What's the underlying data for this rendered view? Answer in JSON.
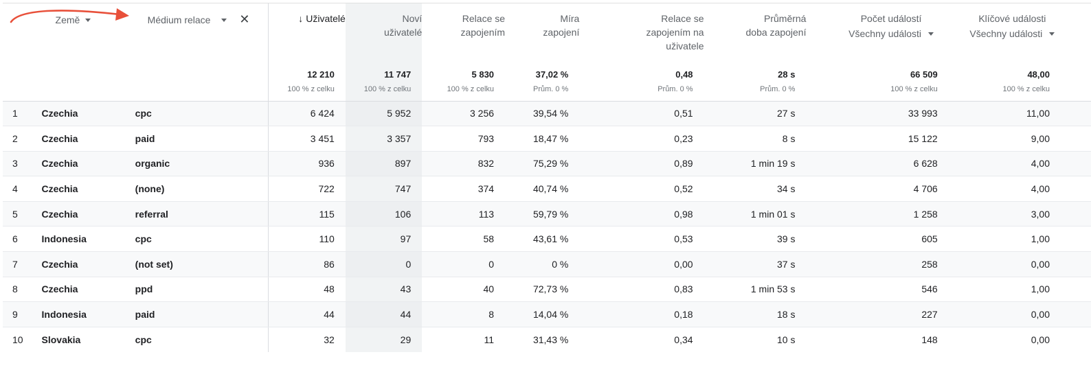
{
  "dimensions": {
    "country_label": "Země",
    "medium_label": "Médium relace",
    "close_glyph": "✕"
  },
  "metrics": [
    {
      "key": "users",
      "label": "Uživatelé",
      "sorted": true,
      "sort_glyph": "↓"
    },
    {
      "key": "new_users",
      "label": "Noví uživatelé"
    },
    {
      "key": "engaged",
      "label": "Relace se zapojením"
    },
    {
      "key": "rate",
      "label": "Míra zapojení"
    },
    {
      "key": "per_user",
      "label": "Relace se zapojením na uživatele"
    },
    {
      "key": "duration",
      "label": "Průměrná doba zapojení"
    },
    {
      "key": "events",
      "label": "Počet událostí",
      "selector": "Všechny události"
    },
    {
      "key": "key_events",
      "label": "Klíčové události",
      "selector": "Všechny události"
    }
  ],
  "totals": [
    {
      "value": "12 210",
      "sub": "100 % z celku"
    },
    {
      "value": "11 747",
      "sub": "100 % z celku"
    },
    {
      "value": "5 830",
      "sub": "100 % z celku"
    },
    {
      "value": "37,02 %",
      "sub": "Prům. 0 %"
    },
    {
      "value": "0,48",
      "sub": "Prům. 0 %"
    },
    {
      "value": "28 s",
      "sub": "Prům. 0 %"
    },
    {
      "value": "66 509",
      "sub": "100 % z celku"
    },
    {
      "value": "48,00",
      "sub": "100 % z celku"
    }
  ],
  "rows": [
    {
      "idx": "1",
      "country": "Czechia",
      "medium": "cpc",
      "values": [
        "6 424",
        "5 952",
        "3 256",
        "39,54 %",
        "0,51",
        "27 s",
        "33 993",
        "11,00"
      ]
    },
    {
      "idx": "2",
      "country": "Czechia",
      "medium": "paid",
      "values": [
        "3 451",
        "3 357",
        "793",
        "18,47 %",
        "0,23",
        "8 s",
        "15 122",
        "9,00"
      ]
    },
    {
      "idx": "3",
      "country": "Czechia",
      "medium": "organic",
      "values": [
        "936",
        "897",
        "832",
        "75,29 %",
        "0,89",
        "1 min 19 s",
        "6 628",
        "4,00"
      ]
    },
    {
      "idx": "4",
      "country": "Czechia",
      "medium": "(none)",
      "values": [
        "722",
        "747",
        "374",
        "40,74 %",
        "0,52",
        "34 s",
        "4 706",
        "4,00"
      ]
    },
    {
      "idx": "5",
      "country": "Czechia",
      "medium": "referral",
      "values": [
        "115",
        "106",
        "113",
        "59,79 %",
        "0,98",
        "1 min 01 s",
        "1 258",
        "3,00"
      ]
    },
    {
      "idx": "6",
      "country": "Indonesia",
      "medium": "cpc",
      "values": [
        "110",
        "97",
        "58",
        "43,61 %",
        "0,53",
        "39 s",
        "605",
        "1,00"
      ]
    },
    {
      "idx": "7",
      "country": "Czechia",
      "medium": "(not set)",
      "values": [
        "86",
        "0",
        "0",
        "0 %",
        "0,00",
        "37 s",
        "258",
        "0,00"
      ]
    },
    {
      "idx": "8",
      "country": "Czechia",
      "medium": "ppd",
      "values": [
        "48",
        "43",
        "40",
        "72,73 %",
        "0,83",
        "1 min 53 s",
        "546",
        "1,00"
      ]
    },
    {
      "idx": "9",
      "country": "Indonesia",
      "medium": "paid",
      "values": [
        "44",
        "44",
        "8",
        "14,04 %",
        "0,18",
        "18 s",
        "227",
        "0,00"
      ]
    },
    {
      "idx": "10",
      "country": "Slovakia",
      "medium": "cpc",
      "values": [
        "32",
        "29",
        "11",
        "31,43 %",
        "0,34",
        "10 s",
        "148",
        "0,00"
      ]
    }
  ],
  "colors": {
    "annotation_arrow": "#e8503a",
    "highlight_column": "#f1f3f4"
  },
  "icons": {
    "dropdown": "caret-down-icon",
    "sort": "arrow-down-icon",
    "remove": "close-icon"
  }
}
